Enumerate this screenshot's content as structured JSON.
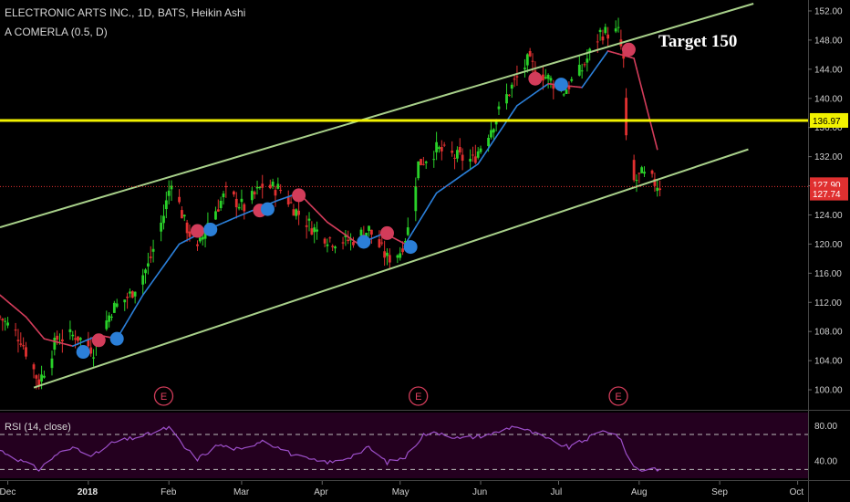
{
  "header": {
    "title": "ELECTRONIC ARTS INC., 1D, BATS, Heikin Ashi",
    "indicator": "A COMERLA (0.5, D)",
    "annotation": "Target 150",
    "rsi_label": "RSI (14, close)"
  },
  "colors": {
    "background": "#000000",
    "up_candle": "#29d129",
    "down_candle": "#e03030",
    "ma_up": "#2b7fd8",
    "ma_down": "#d23c5a",
    "channel": "#a8d08a",
    "resistance": "#f2f200",
    "last_price": "#e03030",
    "rsi": "#9c4fc9",
    "rsi_fill": "#24001f"
  },
  "chart_data": [
    {
      "type": "candlestick",
      "title": "ELECTRONIC ARTS INC., 1D, BATS, Heikin Ashi",
      "y_ticks": [
        "152.00",
        "148.00",
        "144.00",
        "140.00",
        "136.00",
        "132.00",
        "128.00",
        "124.00",
        "120.00",
        "116.00",
        "112.00",
        "108.00",
        "104.00",
        "100.00"
      ],
      "ylim": [
        97.5,
        153.5
      ],
      "x_ticks": [
        "Dec",
        "2018",
        "Feb",
        "Mar",
        "Apr",
        "May",
        "Jun",
        "Jul",
        "Aug",
        "Sep",
        "Oct"
      ],
      "xlim": [
        "2017-11-28",
        "2018-10-05"
      ],
      "tick_dates": [
        "2017-12-01",
        "2018-01-01",
        "2018-02-01",
        "2018-03-01",
        "2018-04-01",
        "2018-05-01",
        "2018-06-01",
        "2018-07-01",
        "2018-08-01",
        "2018-09-01",
        "2018-10-01"
      ],
      "price_anchors": [
        [
          "2017-11-28",
          110
        ],
        [
          "2017-12-06",
          107
        ],
        [
          "2017-12-13",
          101
        ],
        [
          "2017-12-20",
          107
        ],
        [
          "2017-12-27",
          107.5
        ],
        [
          "2018-01-03",
          105.5
        ],
        [
          "2018-01-10",
          111
        ],
        [
          "2018-01-17",
          113
        ],
        [
          "2018-01-24",
          117
        ],
        [
          "2018-01-30",
          124
        ],
        [
          "2018-02-02",
          129
        ],
        [
          "2018-02-07",
          123
        ],
        [
          "2018-02-12",
          119
        ],
        [
          "2018-02-16",
          123
        ],
        [
          "2018-02-23",
          127
        ],
        [
          "2018-03-02",
          125
        ],
        [
          "2018-03-09",
          128
        ],
        [
          "2018-03-16",
          127.5
        ],
        [
          "2018-03-22",
          124.5
        ],
        [
          "2018-03-29",
          122
        ],
        [
          "2018-04-05",
          120.5
        ],
        [
          "2018-04-12",
          120.5
        ],
        [
          "2018-04-19",
          122
        ],
        [
          "2018-04-26",
          118
        ],
        [
          "2018-05-01",
          119
        ],
        [
          "2018-05-04",
          122
        ],
        [
          "2018-05-08",
          131
        ],
        [
          "2018-05-15",
          133
        ],
        [
          "2018-05-22",
          132
        ],
        [
          "2018-05-29",
          131.5
        ],
        [
          "2018-06-05",
          136
        ],
        [
          "2018-06-12",
          141
        ],
        [
          "2018-06-19",
          145
        ],
        [
          "2018-06-26",
          143
        ],
        [
          "2018-07-03",
          141
        ],
        [
          "2018-07-10",
          144
        ],
        [
          "2018-07-17",
          149
        ],
        [
          "2018-07-24",
          149
        ],
        [
          "2018-07-26",
          145
        ],
        [
          "2018-07-27",
          134
        ],
        [
          "2018-07-30",
          128.5
        ],
        [
          "2018-08-02",
          129.5
        ],
        [
          "2018-08-09",
          128
        ]
      ],
      "moving_average": [
        [
          "2017-11-28",
          113
        ],
        [
          "2017-12-08",
          110
        ],
        [
          "2017-12-15",
          107
        ],
        [
          "2017-12-26",
          106
        ],
        [
          "2018-01-05",
          107.5
        ],
        [
          "2018-01-12",
          107
        ],
        [
          "2018-01-22",
          113
        ],
        [
          "2018-02-05",
          120
        ],
        [
          "2018-02-16",
          122
        ],
        [
          "2018-03-01",
          124
        ],
        [
          "2018-03-15",
          126
        ],
        [
          "2018-03-23",
          127
        ],
        [
          "2018-04-03",
          123
        ],
        [
          "2018-04-15",
          120
        ],
        [
          "2018-04-25",
          121.5
        ],
        [
          "2018-05-03",
          120
        ],
        [
          "2018-05-15",
          127
        ],
        [
          "2018-05-31",
          131
        ],
        [
          "2018-06-15",
          139
        ],
        [
          "2018-06-27",
          142
        ],
        [
          "2018-07-10",
          141.5
        ],
        [
          "2018-07-20",
          146.5
        ],
        [
          "2018-07-30",
          145.5
        ],
        [
          "2018-08-08",
          133
        ]
      ],
      "markers": [
        {
          "date": "2017-12-30",
          "price": 105.2,
          "kind": "buy"
        },
        {
          "date": "2018-01-05",
          "price": 106.8,
          "kind": "sell"
        },
        {
          "date": "2018-01-12",
          "price": 107.0,
          "kind": "buy"
        },
        {
          "date": "2018-02-12",
          "price": 121.8,
          "kind": "sell"
        },
        {
          "date": "2018-02-17",
          "price": 122.0,
          "kind": "buy"
        },
        {
          "date": "2018-03-08",
          "price": 124.6,
          "kind": "sell"
        },
        {
          "date": "2018-03-11",
          "price": 124.8,
          "kind": "buy"
        },
        {
          "date": "2018-03-23",
          "price": 126.7,
          "kind": "sell"
        },
        {
          "date": "2018-04-17",
          "price": 120.3,
          "kind": "buy"
        },
        {
          "date": "2018-04-26",
          "price": 121.5,
          "kind": "sell"
        },
        {
          "date": "2018-05-05",
          "price": 119.6,
          "kind": "buy"
        },
        {
          "date": "2018-06-22",
          "price": 142.7,
          "kind": "sell"
        },
        {
          "date": "2018-07-02",
          "price": 141.9,
          "kind": "buy"
        },
        {
          "date": "2018-07-28",
          "price": 146.7,
          "kind": "sell"
        }
      ],
      "earnings": [
        {
          "date": "2018-01-30",
          "label": "E"
        },
        {
          "date": "2018-05-08",
          "label": "E"
        },
        {
          "date": "2018-07-24",
          "label": "E"
        }
      ],
      "channel_lines": [
        {
          "from": [
            "2017-11-28",
            122.3
          ],
          "to": [
            "2018-09-14",
            153.0
          ]
        },
        {
          "from": [
            "2017-12-11",
            100.3
          ],
          "to": [
            "2018-09-12",
            133.0
          ]
        }
      ],
      "resistance": {
        "value": 136.97,
        "label": "136.97"
      },
      "price_labels": [
        {
          "value": 127.9,
          "label": "127.90"
        },
        {
          "value": 127.74,
          "label": "127.74"
        }
      ]
    },
    {
      "type": "line",
      "title": "RSI (14, close)",
      "ylim": [
        20,
        95
      ],
      "y_ticks": [
        "80.00",
        "40.00"
      ],
      "hlines": [
        70,
        30
      ],
      "series": [
        {
          "values_anchors": [
            [
              "2017-11-28",
              52
            ],
            [
              "2017-12-06",
              40
            ],
            [
              "2017-12-13",
              30
            ],
            [
              "2017-12-20",
              48
            ],
            [
              "2017-12-27",
              55
            ],
            [
              "2018-01-03",
              46
            ],
            [
              "2018-01-10",
              60
            ],
            [
              "2018-01-17",
              65
            ],
            [
              "2018-01-24",
              70
            ],
            [
              "2018-02-01",
              78
            ],
            [
              "2018-02-07",
              55
            ],
            [
              "2018-02-12",
              42
            ],
            [
              "2018-02-20",
              58
            ],
            [
              "2018-03-01",
              52
            ],
            [
              "2018-03-09",
              64
            ],
            [
              "2018-03-22",
              45
            ],
            [
              "2018-03-29",
              40
            ],
            [
              "2018-04-05",
              38
            ],
            [
              "2018-04-12",
              45
            ],
            [
              "2018-04-19",
              55
            ],
            [
              "2018-04-26",
              38
            ],
            [
              "2018-05-03",
              44
            ],
            [
              "2018-05-10",
              70
            ],
            [
              "2018-05-17",
              72
            ],
            [
              "2018-05-24",
              65
            ],
            [
              "2018-05-31",
              68
            ],
            [
              "2018-06-07",
              72
            ],
            [
              "2018-06-14",
              80
            ],
            [
              "2018-06-21",
              72
            ],
            [
              "2018-06-28",
              63
            ],
            [
              "2018-07-05",
              55
            ],
            [
              "2018-07-12",
              65
            ],
            [
              "2018-07-19",
              75
            ],
            [
              "2018-07-24",
              68
            ],
            [
              "2018-07-27",
              50
            ],
            [
              "2018-07-30",
              33
            ],
            [
              "2018-08-02",
              29
            ],
            [
              "2018-08-06",
              32
            ],
            [
              "2018-08-09",
              30
            ]
          ]
        }
      ]
    }
  ]
}
